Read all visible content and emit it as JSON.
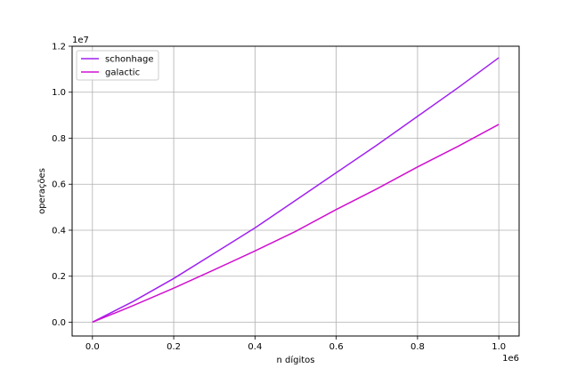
{
  "chart_data": {
    "type": "line",
    "xlabel": "n dígitos",
    "ylabel": "operações",
    "x_offset_label": "1e6",
    "y_offset_label": "1e7",
    "xlim": [
      -0.05,
      1.05
    ],
    "ylim": [
      -0.06,
      1.2
    ],
    "grid": true,
    "legend_position": "top-left",
    "x_ticks": [
      0.0,
      0.2,
      0.4,
      0.6,
      0.8,
      1.0
    ],
    "x_tick_labels": [
      "0.0",
      "0.2",
      "0.4",
      "0.6",
      "0.8",
      "1.0"
    ],
    "y_ticks": [
      0.0,
      0.2,
      0.4,
      0.6,
      0.8,
      1.0,
      1.2
    ],
    "y_tick_labels": [
      "0.0",
      "0.2",
      "0.4",
      "0.6",
      "0.8",
      "1.0",
      "1.2"
    ],
    "series": [
      {
        "name": "schonhage",
        "color": "#a020f0",
        "x": [
          0.0,
          0.1,
          0.2,
          0.3,
          0.4,
          0.5,
          0.6,
          0.7,
          0.8,
          0.9,
          1.0
        ],
        "y": [
          0.0,
          0.09,
          0.19,
          0.3,
          0.41,
          0.53,
          0.65,
          0.77,
          0.895,
          1.02,
          1.15
        ]
      },
      {
        "name": "galactic",
        "color": "#d010d0",
        "x": [
          0.0,
          0.1,
          0.2,
          0.3,
          0.4,
          0.5,
          0.6,
          0.7,
          0.8,
          0.9,
          1.0
        ],
        "y": [
          0.0,
          0.072,
          0.148,
          0.228,
          0.31,
          0.395,
          0.49,
          0.58,
          0.675,
          0.765,
          0.86
        ]
      }
    ]
  }
}
